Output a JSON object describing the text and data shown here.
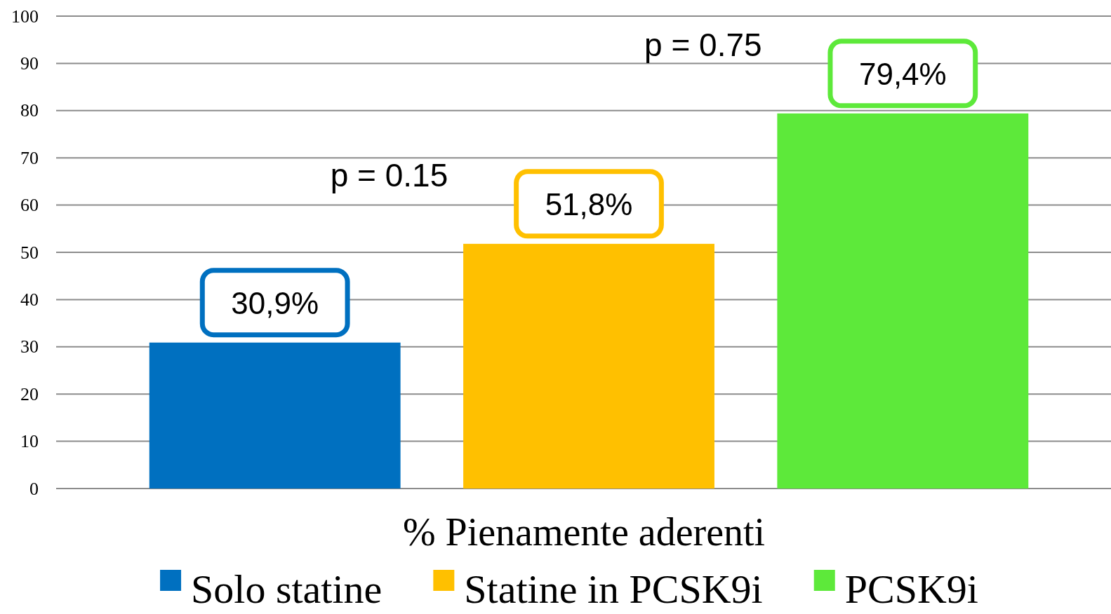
{
  "chart_data": {
    "type": "bar",
    "categories": [
      "% Pienamente aderenti"
    ],
    "series": [
      {
        "name": "Solo statine",
        "color": "#0070c0",
        "values": [
          30.9
        ],
        "value_labels": [
          "30,9%"
        ]
      },
      {
        "name": "Statine in PCSK9i",
        "color": "#ffc000",
        "values": [
          51.8
        ],
        "value_labels": [
          "51,8%"
        ]
      },
      {
        "name": "PCSK9i",
        "color": "#5de93a",
        "values": [
          79.4
        ],
        "value_labels": [
          "79,4%"
        ]
      }
    ],
    "ylim": [
      0,
      100
    ],
    "yticks": [
      0,
      10,
      20,
      30,
      40,
      50,
      60,
      70,
      80,
      90,
      100
    ],
    "grid": "y",
    "legend": "bottom",
    "annotations": [
      "p = 0.15",
      "p = 0.75"
    ]
  }
}
